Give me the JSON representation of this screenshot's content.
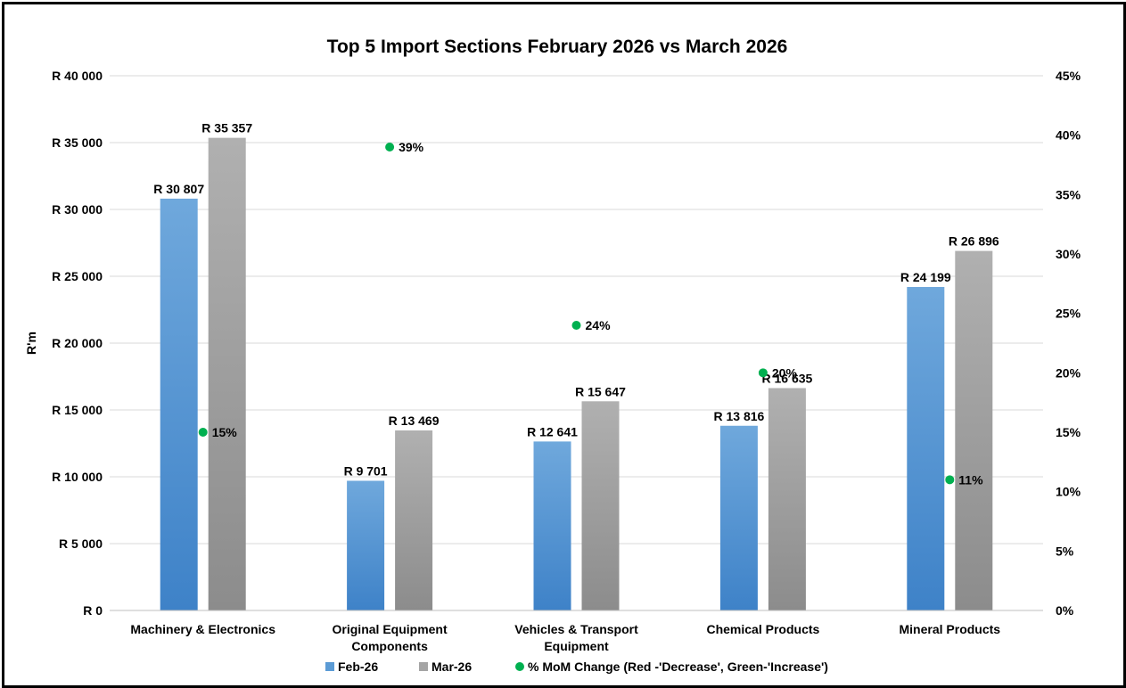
{
  "chart_data": {
    "type": "bar",
    "title": "Top 5 Import Sections February 2026 vs March 2026",
    "ylabel": "R'm",
    "y2label": "",
    "categories": [
      [
        "Machinery & Electronics"
      ],
      [
        "Original Equipment",
        "Components"
      ],
      [
        "Vehicles & Transport",
        "Equipment"
      ],
      [
        "Chemical Products"
      ],
      [
        "Mineral Products"
      ]
    ],
    "series": [
      {
        "name": "Feb-26",
        "values": [
          30807,
          9701,
          12641,
          13816,
          24199
        ],
        "labels": [
          "R 30 807",
          "R 9 701",
          "R 12 641",
          "R 13 816",
          "R 24 199"
        ],
        "color": "#5B9BD5"
      },
      {
        "name": "Mar-26",
        "values": [
          35357,
          13469,
          15647,
          16635,
          26896
        ],
        "labels": [
          "R 35 357",
          "R 13 469",
          "R 15 647",
          "R 16 635",
          "R 26 896"
        ],
        "color": "#A5A5A5"
      }
    ],
    "secondary_series": {
      "name": "% MoM Change (Red -'Decrease', Green-'Increase')",
      "type": "scatter",
      "axis": "right",
      "values": [
        15,
        39,
        24,
        20,
        11
      ],
      "labels": [
        "15%",
        "39%",
        "24%",
        "20%",
        "11%"
      ],
      "color": "#00B050"
    },
    "ylim": [
      0,
      40000
    ],
    "y_ticks": [
      "R 0",
      "R 5 000",
      "R 10 000",
      "R 15 000",
      "R 20 000",
      "R 25 000",
      "R 30 000",
      "R 35 000",
      "R 40 000"
    ],
    "y2lim": [
      0,
      45
    ],
    "y2_ticks": [
      "0%",
      "5%",
      "10%",
      "15%",
      "20%",
      "25%",
      "30%",
      "35%",
      "40%",
      "45%"
    ],
    "grid": true,
    "legend_position": "bottom"
  }
}
